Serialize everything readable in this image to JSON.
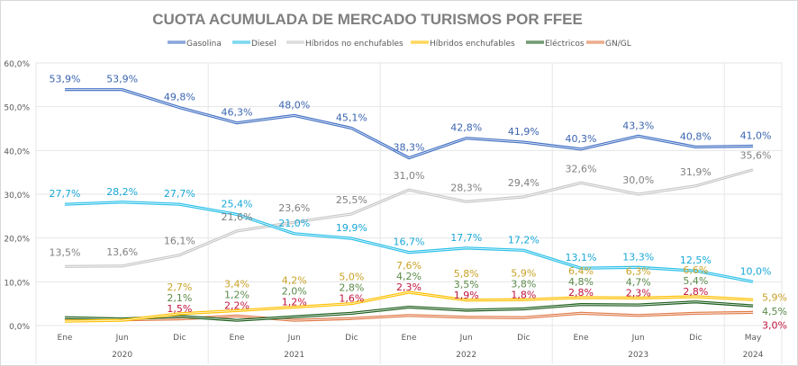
{
  "chart_data": {
    "type": "line",
    "title": "CUOTA ACUMULADA DE MERCADO TURISMOS POR FFEE",
    "categories": [
      "Ene",
      "Jun",
      "Dic",
      "Ene",
      "Jun",
      "Dic",
      "Ene",
      "Jun",
      "Dic",
      "Ene",
      "Jun",
      "Dic",
      "May"
    ],
    "year_groups": [
      {
        "label": "2020",
        "span": 3
      },
      {
        "label": "2021",
        "span": 3
      },
      {
        "label": "2022",
        "span": 3
      },
      {
        "label": "2023",
        "span": 3
      },
      {
        "label": "2024",
        "span": 1
      }
    ],
    "ylim": [
      0,
      60
    ],
    "yticks": [
      "0,0%",
      "10,0%",
      "20,0%",
      "30,0%",
      "40,0%",
      "50,0%",
      "60,0%"
    ],
    "grid": true,
    "legend_position": "top",
    "series": [
      {
        "name": "Gasolina",
        "color": "#4472c4",
        "label_color": "#3a64b0",
        "values": [
          53.9,
          53.9,
          49.8,
          46.3,
          48.0,
          45.1,
          38.3,
          42.8,
          41.9,
          40.3,
          43.3,
          40.8,
          41.0
        ],
        "labels": [
          "53,9%",
          "53,9%",
          "49,8%",
          "46,3%",
          "48,0%",
          "45,1%",
          "38,3%",
          "42,8%",
          "41,9%",
          "40,3%",
          "43,3%",
          "40,8%",
          "41,0%"
        ]
      },
      {
        "name": "Diesel",
        "color": "#2cc0e8",
        "label_color": "#18a8d8",
        "values": [
          27.7,
          28.2,
          27.7,
          25.4,
          21.0,
          19.9,
          16.7,
          17.7,
          17.2,
          13.1,
          13.3,
          12.5,
          10.0
        ],
        "labels": [
          "27,7%",
          "28,2%",
          "27,7%",
          "25,4%",
          "21,0%",
          "19,9%",
          "16,7%",
          "17,7%",
          "17,2%",
          "13,1%",
          "13,3%",
          "12,5%",
          "10,0%"
        ]
      },
      {
        "name": "Híbridos no enchufables",
        "color": "#c8c8c8",
        "label_color": "#808080",
        "values": [
          13.5,
          13.6,
          16.1,
          21.6,
          23.6,
          25.5,
          31.0,
          28.3,
          29.4,
          32.6,
          30.0,
          31.9,
          35.6
        ],
        "labels": [
          "13,5%",
          "13,6%",
          "16,1%",
          "21,6%",
          "23,6%",
          "25,5%",
          "31,0%",
          "28,3%",
          "29,4%",
          "32,6%",
          "30,0%",
          "31,9%",
          "35,6%"
        ]
      },
      {
        "name": "Híbridos enchufables",
        "color": "#ffc000",
        "label_color": "#c9a227",
        "values": [
          1.0,
          1.2,
          2.7,
          3.4,
          4.2,
          5.0,
          7.6,
          5.8,
          5.9,
          6.4,
          6.3,
          6.6,
          5.9
        ],
        "labels": [
          null,
          null,
          "2,7%",
          "3,4%",
          "4,2%",
          "5,0%",
          "7,6%",
          "5,8%",
          "5,9%",
          "6,4%",
          "6,3%",
          "6,6%",
          "5,9%"
        ]
      },
      {
        "name": "Eléctricos",
        "color": "#1f5f1f",
        "label_color": "#5b8a4a",
        "values": [
          1.8,
          1.5,
          2.1,
          1.2,
          2.0,
          2.8,
          4.2,
          3.5,
          3.8,
          4.8,
          4.7,
          5.4,
          4.5
        ],
        "labels": [
          null,
          null,
          "2,1%",
          "1,2%",
          "2,0%",
          "2,8%",
          "4,2%",
          "3,5%",
          "3,8%",
          "4,8%",
          "4,7%",
          "5,4%",
          "4,5%"
        ]
      },
      {
        "name": "GN/GL",
        "color": "#e07b4a",
        "label_color": "#c0143c",
        "values": [
          1.5,
          1.3,
          1.5,
          2.2,
          1.2,
          1.6,
          2.3,
          1.9,
          1.8,
          2.8,
          2.3,
          2.8,
          3.0
        ],
        "labels": [
          null,
          null,
          "1,5%",
          "2,2%",
          "1,2%",
          "1,6%",
          "2,3%",
          "1,9%",
          "1,8%",
          "2,8%",
          "2,3%",
          "2,8%",
          "3,0%"
        ]
      }
    ]
  }
}
